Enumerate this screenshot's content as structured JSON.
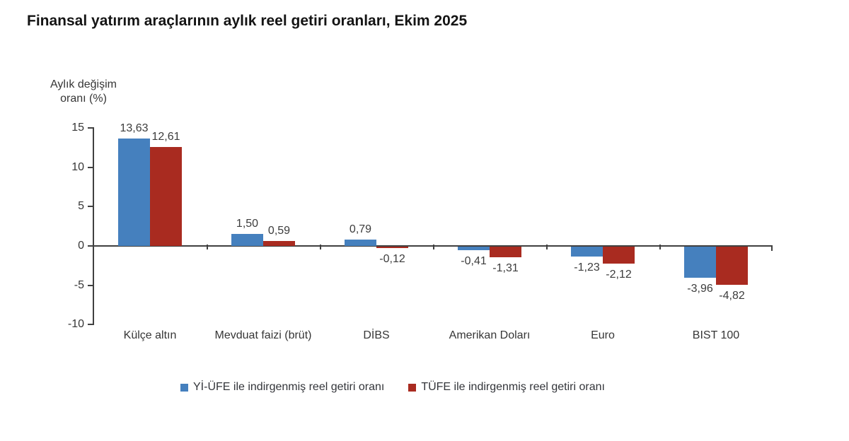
{
  "title": "Finansal yatırım araçlarının aylık reel getiri oranları, Ekim 2025",
  "chart_data": {
    "type": "bar",
    "title": "Finansal yatırım araçlarının aylık reel getiri oranları, Ekim 2025",
    "y_axis_title_lines": [
      "Aylık değişim",
      "oranı (%)"
    ],
    "categories": [
      "Külçe altın",
      "Mevduat faizi (brüt)",
      "DİBS",
      "Amerikan Doları",
      "Euro",
      "BIST 100"
    ],
    "series": [
      {
        "name": "Yİ-ÜFE ile indirgenmiş reel getiri oranı",
        "color": "#4580BE",
        "values": [
          13.63,
          1.5,
          0.79,
          -0.41,
          -1.23,
          -3.96
        ],
        "labels": [
          "13,63",
          "1,50",
          "0,79",
          "-0,41",
          "-1,23",
          "-3,96"
        ]
      },
      {
        "name": "TÜFE ile indirgenmiş reel getiri oranı",
        "color": "#A92B20",
        "values": [
          12.61,
          0.59,
          -0.12,
          -1.31,
          -2.12,
          -4.82
        ],
        "labels": [
          "12,61",
          "0,59",
          "-0,12",
          "-1,31",
          "-2,12",
          "-4,82"
        ]
      }
    ],
    "y_ticks": [
      15,
      10,
      5,
      0,
      -5,
      -10
    ],
    "ylim": [
      -10,
      15
    ],
    "grid": false,
    "legend_position": "bottom"
  }
}
